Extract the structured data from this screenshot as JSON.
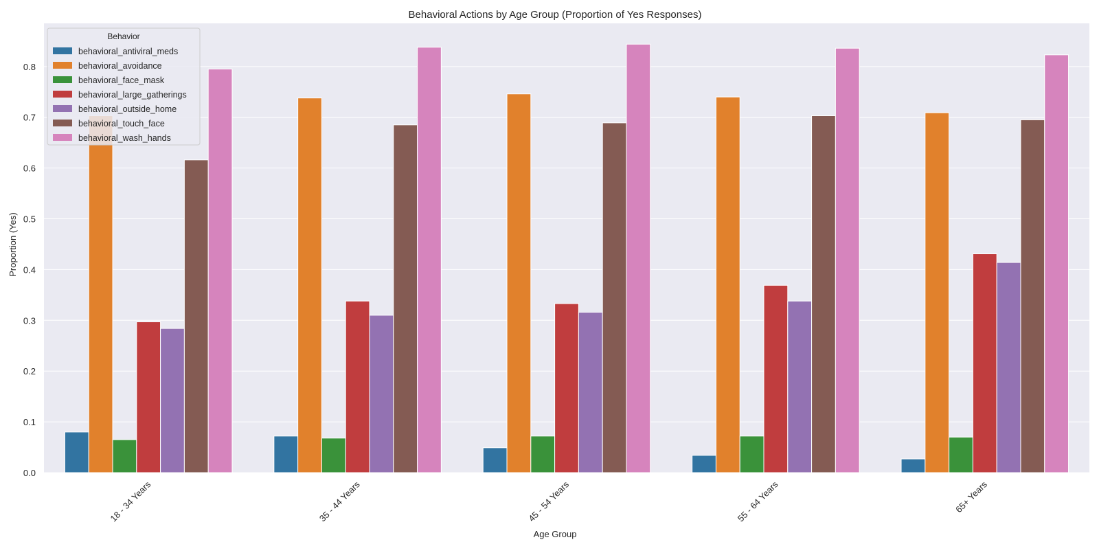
{
  "chart_data": {
    "type": "bar",
    "title": "Behavioral Actions by Age Group (Proportion of Yes Responses)",
    "xlabel": "Age Group",
    "ylabel": "Proportion (Yes)",
    "ylim": [
      0,
      0.885
    ],
    "yticks": [
      "0.0",
      "0.1",
      "0.2",
      "0.3",
      "0.4",
      "0.5",
      "0.6",
      "0.7",
      "0.8"
    ],
    "grid": true,
    "legend_title": "Behavior",
    "legend_position": "top-left",
    "categories": [
      "18 - 34 Years",
      "35 - 44 Years",
      "45 - 54 Years",
      "55 - 64 Years",
      "65+ Years"
    ],
    "series": [
      {
        "name": "behavioral_antiviral_meds",
        "color": "#3274a1",
        "values": [
          0.08,
          0.072,
          0.049,
          0.034,
          0.027
        ]
      },
      {
        "name": "behavioral_avoidance",
        "color": "#e1812c",
        "values": [
          0.703,
          0.738,
          0.746,
          0.74,
          0.709
        ]
      },
      {
        "name": "behavioral_face_mask",
        "color": "#3a923a",
        "values": [
          0.065,
          0.068,
          0.072,
          0.072,
          0.07
        ]
      },
      {
        "name": "behavioral_large_gatherings",
        "color": "#c03d3e",
        "values": [
          0.297,
          0.338,
          0.333,
          0.369,
          0.431
        ]
      },
      {
        "name": "behavioral_outside_home",
        "color": "#9372b2",
        "values": [
          0.284,
          0.31,
          0.316,
          0.338,
          0.414
        ]
      },
      {
        "name": "behavioral_touch_face",
        "color": "#845b53",
        "values": [
          0.616,
          0.685,
          0.689,
          0.703,
          0.695
        ]
      },
      {
        "name": "behavioral_wash_hands",
        "color": "#d684bd",
        "values": [
          0.795,
          0.838,
          0.844,
          0.836,
          0.823
        ]
      }
    ]
  },
  "colors": {
    "plot_background": "#eaeaf2",
    "grid": "#ffffff"
  }
}
